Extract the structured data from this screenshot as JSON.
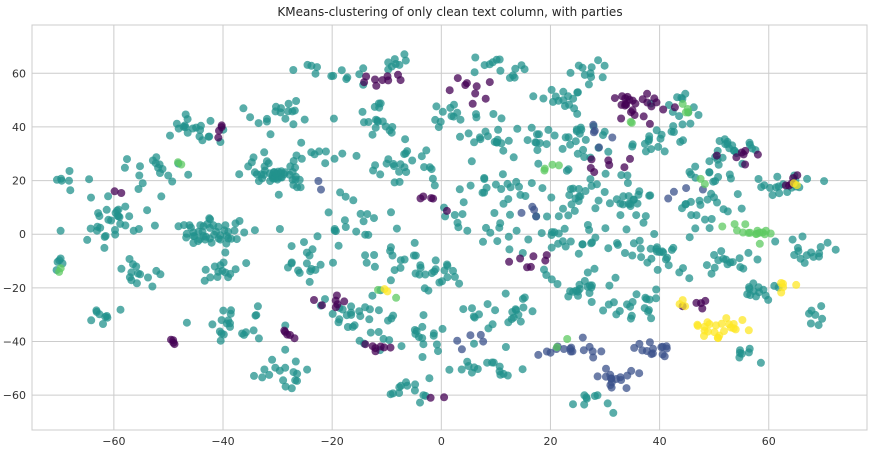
{
  "chart_data": {
    "type": "scatter",
    "title": "KMeans-clustering of only clean text column, with parties",
    "xlabel": "",
    "ylabel": "",
    "xlim": [
      -75,
      78
    ],
    "ylim": [
      -73,
      78
    ],
    "xticks": [
      -60,
      -40,
      -20,
      0,
      20,
      40,
      60
    ],
    "yticks": [
      -60,
      -40,
      -20,
      0,
      20,
      40,
      60
    ],
    "xtick_labels": [
      "−60",
      "−40",
      "−20",
      "0",
      "20",
      "40",
      "60"
    ],
    "ytick_labels": [
      "−60",
      "−40",
      "−20",
      "0",
      "20",
      "40",
      "60"
    ],
    "grid": true,
    "legend": "none",
    "colors": {
      "cluster_0": "#440154",
      "cluster_1": "#3b528b",
      "cluster_2": "#21918c",
      "cluster_3": "#5ec962",
      "cluster_4": "#fde725",
      "background": "#ffffff",
      "grid": "#cccccc"
    },
    "clusters": [
      {
        "cluster": 2,
        "color": "#21918c",
        "blobs": [
          [
            -30,
            23,
            6,
            5,
            1
          ],
          [
            -42,
            0,
            5,
            5,
            1
          ],
          [
            -17,
            2,
            9,
            10,
            0.55
          ],
          [
            -45,
            39,
            6,
            6,
            0.45
          ],
          [
            -53,
            24,
            5,
            5,
            0.4
          ],
          [
            -60,
            3,
            6,
            7,
            0.4
          ],
          [
            -56,
            -14,
            4,
            5,
            0.3
          ],
          [
            -40,
            -15,
            4,
            4,
            0.3
          ],
          [
            -25,
            -10,
            4,
            6,
            0.35
          ],
          [
            -37,
            -35,
            7,
            8,
            0.5
          ],
          [
            -15,
            -30,
            8,
            10,
            0.6
          ],
          [
            -28,
            -52,
            6,
            6,
            0.4
          ],
          [
            -3,
            -38,
            6,
            8,
            0.45
          ],
          [
            -5,
            -58,
            5,
            4,
            0.3
          ],
          [
            8,
            -50,
            6,
            6,
            0.35
          ],
          [
            12,
            -30,
            8,
            8,
            0.5
          ],
          [
            -30,
            45,
            6,
            6,
            0.4
          ],
          [
            -12,
            43,
            5,
            6,
            0.4
          ],
          [
            -5,
            25,
            8,
            8,
            0.55
          ],
          [
            2,
            42,
            6,
            6,
            0.4
          ],
          [
            13,
            35,
            7,
            7,
            0.5
          ],
          [
            12,
            18,
            9,
            8,
            0.55
          ],
          [
            8,
            2,
            8,
            7,
            0.45
          ],
          [
            22,
            50,
            5,
            5,
            0.35
          ],
          [
            25,
            35,
            6,
            7,
            0.5
          ],
          [
            25,
            15,
            7,
            8,
            0.5
          ],
          [
            25,
            -2,
            7,
            6,
            0.5
          ],
          [
            25,
            -20,
            7,
            7,
            0.5
          ],
          [
            40,
            35,
            6,
            6,
            0.45
          ],
          [
            35,
            12,
            6,
            7,
            0.5
          ],
          [
            37,
            -8,
            6,
            8,
            0.55
          ],
          [
            35,
            -27,
            6,
            6,
            0.45
          ],
          [
            50,
            25,
            5,
            6,
            0.4
          ],
          [
            48,
            10,
            6,
            6,
            0.45
          ],
          [
            52,
            -10,
            6,
            6,
            0.4
          ],
          [
            58,
            -20,
            4,
            4,
            0.3
          ],
          [
            62,
            18,
            5,
            4,
            0.4
          ],
          [
            67,
            -5,
            5,
            5,
            0.35
          ],
          [
            54,
            33,
            4,
            4,
            0.3
          ],
          [
            12,
            62,
            6,
            5,
            0.3
          ],
          [
            -18,
            60,
            8,
            4,
            0.3
          ],
          [
            -60,
            8,
            4,
            6,
            0.3
          ],
          [
            0,
            -15,
            6,
            6,
            0.4
          ],
          [
            -8,
            -10,
            5,
            6,
            0.35
          ],
          [
            28,
            60,
            5,
            4,
            0.25
          ],
          [
            45,
            48,
            4,
            4,
            0.25
          ],
          [
            -22,
            30,
            4,
            4,
            0.25
          ],
          [
            -62,
            -30,
            3,
            3,
            0.2
          ],
          [
            -8,
            64,
            3,
            3,
            0.15
          ],
          [
            -68,
            20,
            3,
            3,
            0.15
          ],
          [
            28,
            -63,
            6,
            4,
            0.2
          ],
          [
            55,
            -45,
            3,
            3,
            0.15
          ],
          [
            68,
            -30,
            3,
            3,
            0.15
          ],
          [
            -70,
            -12,
            3,
            3,
            0.1
          ]
        ]
      },
      {
        "cluster": 0,
        "color": "#440154",
        "blobs": [
          [
            36,
            48,
            5,
            4,
            0.55
          ],
          [
            -11,
            58,
            4,
            2,
            0.2
          ],
          [
            -28,
            -38,
            2,
            2,
            0.1
          ],
          [
            6,
            55,
            4,
            4,
            0.2
          ],
          [
            -20,
            -25,
            4,
            3,
            0.15
          ],
          [
            -12,
            -42,
            4,
            3,
            0.15
          ],
          [
            16,
            -10,
            4,
            4,
            0.15
          ],
          [
            30,
            25,
            4,
            4,
            0.15
          ],
          [
            55,
            30,
            3,
            3,
            0.15
          ],
          [
            -49,
            -40,
            2,
            2,
            0.08
          ],
          [
            -40,
            40,
            3,
            3,
            0.08
          ],
          [
            47,
            -25,
            3,
            3,
            0.1
          ],
          [
            -60,
            17,
            2,
            2,
            0.05
          ],
          [
            0,
            -62,
            2,
            2,
            0.05
          ],
          [
            -2,
            14,
            3,
            3,
            0.1
          ],
          [
            65,
            18,
            3,
            3,
            0.1
          ]
        ]
      },
      {
        "cluster": 1,
        "color": "#3b528b",
        "blobs": [
          [
            23,
            -43,
            4,
            3,
            0.35
          ],
          [
            32,
            -53,
            5,
            4,
            0.35
          ],
          [
            40,
            -43,
            4,
            3,
            0.3
          ],
          [
            5,
            -40,
            3,
            3,
            0.1
          ],
          [
            28,
            38,
            3,
            3,
            0.1
          ],
          [
            15,
            8,
            3,
            3,
            0.08
          ],
          [
            45,
            17,
            3,
            3,
            0.08
          ],
          [
            -23,
            18,
            3,
            3,
            0.05
          ]
        ]
      },
      {
        "cluster": 3,
        "color": "#5ec962",
        "blobs": [
          [
            57,
            1,
            4,
            3,
            0.35
          ],
          [
            45,
            47,
            2,
            2,
            0.08
          ],
          [
            20,
            25,
            3,
            3,
            0.08
          ],
          [
            -10,
            -22,
            3,
            3,
            0.05
          ],
          [
            -49,
            27,
            2,
            2,
            0.05
          ],
          [
            -69,
            -13,
            1,
            1,
            0.02
          ],
          [
            36,
            40,
            3,
            3,
            0.05
          ],
          [
            22,
            -40,
            3,
            3,
            0.05
          ],
          [
            47,
            20,
            2,
            2,
            0.04
          ]
        ]
      },
      {
        "cluster": 4,
        "color": "#fde725",
        "blobs": [
          [
            51,
            -35,
            5,
            4,
            0.5
          ],
          [
            63,
            -20,
            2,
            3,
            0.1
          ],
          [
            45,
            -25,
            2,
            2,
            0.06
          ],
          [
            65,
            18,
            1,
            1,
            0.02
          ],
          [
            -10,
            -20,
            1,
            1,
            0.02
          ]
        ]
      }
    ]
  }
}
